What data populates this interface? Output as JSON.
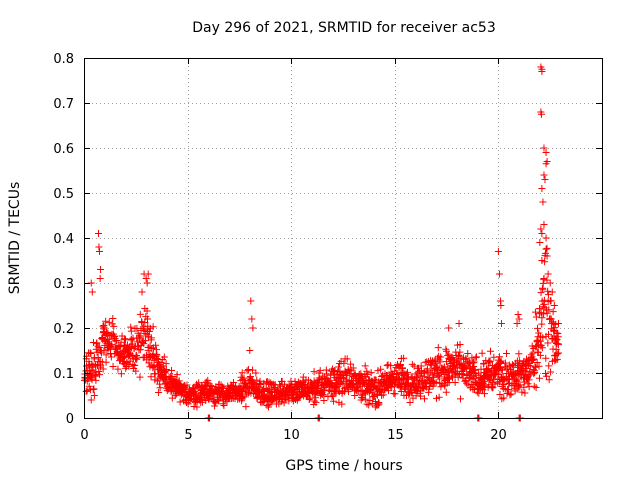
{
  "chart_data": {
    "type": "scatter",
    "title": "Day 296 of 2021, SRMTID for receiver ac53",
    "xlabel": "GPS time / hours",
    "ylabel": "SRMTID / TECUs",
    "xlim": [
      0,
      25
    ],
    "ylim": [
      0,
      0.8
    ],
    "xticks": [
      0,
      5,
      10,
      15,
      20
    ],
    "yticks": [
      0,
      0.1,
      0.2,
      0.3,
      0.4,
      0.5,
      0.6,
      0.7,
      0.8
    ],
    "xtick_labels": [
      "0",
      "5",
      "10",
      "15",
      "20"
    ],
    "ytick_labels": [
      "0",
      "0.1",
      "0.2",
      "0.3",
      "0.4",
      "0.5",
      "0.6",
      "0.7",
      "0.8"
    ],
    "grid": true,
    "marker": "+",
    "color": "#ff0000",
    "envelope": {
      "description": "approximate typical SRMTID level vs time",
      "x": [
        0,
        0.5,
        1,
        1.5,
        2,
        2.5,
        3,
        3.5,
        4,
        5,
        6,
        7,
        8,
        9,
        10,
        11,
        12,
        13,
        14,
        15,
        16,
        17,
        18,
        19,
        20,
        20.5,
        21,
        21.5,
        22,
        22.3,
        22.6,
        22.9
      ],
      "y": [
        0.1,
        0.12,
        0.17,
        0.16,
        0.14,
        0.15,
        0.2,
        0.12,
        0.08,
        0.05,
        0.06,
        0.05,
        0.07,
        0.05,
        0.06,
        0.06,
        0.08,
        0.09,
        0.06,
        0.09,
        0.08,
        0.1,
        0.11,
        0.09,
        0.1,
        0.09,
        0.1,
        0.1,
        0.18,
        0.3,
        0.18,
        0.15
      ],
      "spread": [
        0.05,
        0.07,
        0.06,
        0.06,
        0.05,
        0.07,
        0.08,
        0.06,
        0.04,
        0.03,
        0.03,
        0.03,
        0.04,
        0.03,
        0.03,
        0.04,
        0.05,
        0.05,
        0.04,
        0.05,
        0.05,
        0.06,
        0.06,
        0.05,
        0.06,
        0.05,
        0.05,
        0.06,
        0.12,
        0.2,
        0.1,
        0.06
      ]
    },
    "outliers": [
      {
        "x": 0.35,
        "y": 0.3
      },
      {
        "x": 0.4,
        "y": 0.28
      },
      {
        "x": 0.7,
        "y": 0.41
      },
      {
        "x": 0.72,
        "y": 0.38
      },
      {
        "x": 0.75,
        "y": 0.37
      },
      {
        "x": 0.8,
        "y": 0.33
      },
      {
        "x": 0.78,
        "y": 0.31
      },
      {
        "x": 0.35,
        "y": 0.04
      },
      {
        "x": 0.5,
        "y": 0.05
      },
      {
        "x": 2.9,
        "y": 0.32
      },
      {
        "x": 3.0,
        "y": 0.31
      },
      {
        "x": 3.05,
        "y": 0.3
      },
      {
        "x": 2.8,
        "y": 0.28
      },
      {
        "x": 3.1,
        "y": 0.32
      },
      {
        "x": 8.05,
        "y": 0.26
      },
      {
        "x": 8.1,
        "y": 0.22
      },
      {
        "x": 8.15,
        "y": 0.2
      },
      {
        "x": 8.0,
        "y": 0.15
      },
      {
        "x": 17.6,
        "y": 0.2
      },
      {
        "x": 18.1,
        "y": 0.21
      },
      {
        "x": 20.0,
        "y": 0.37
      },
      {
        "x": 20.05,
        "y": 0.32
      },
      {
        "x": 20.1,
        "y": 0.26
      },
      {
        "x": 20.12,
        "y": 0.25
      },
      {
        "x": 20.15,
        "y": 0.21
      },
      {
        "x": 20.95,
        "y": 0.23
      },
      {
        "x": 20.9,
        "y": 0.21
      },
      {
        "x": 21.0,
        "y": 0.22
      },
      {
        "x": 22.05,
        "y": 0.78
      },
      {
        "x": 22.1,
        "y": 0.775
      },
      {
        "x": 22.1,
        "y": 0.77
      },
      {
        "x": 22.05,
        "y": 0.68
      },
      {
        "x": 22.08,
        "y": 0.675
      },
      {
        "x": 22.2,
        "y": 0.6
      },
      {
        "x": 22.3,
        "y": 0.59
      },
      {
        "x": 22.35,
        "y": 0.57
      },
      {
        "x": 22.3,
        "y": 0.565
      },
      {
        "x": 22.2,
        "y": 0.54
      },
      {
        "x": 22.25,
        "y": 0.53
      },
      {
        "x": 22.1,
        "y": 0.51
      },
      {
        "x": 22.15,
        "y": 0.48
      },
      {
        "x": 22.2,
        "y": 0.43
      },
      {
        "x": 22.1,
        "y": 0.41
      },
      {
        "x": 22.05,
        "y": 0.42
      },
      {
        "x": 22.3,
        "y": 0.4
      },
      {
        "x": 22.0,
        "y": 0.39
      },
      {
        "x": 22.35,
        "y": 0.36
      },
      {
        "x": 22.1,
        "y": 0.35
      },
      {
        "x": 22.4,
        "y": 0.32
      },
      {
        "x": 22.2,
        "y": 0.31
      },
      {
        "x": 22.5,
        "y": 0.3
      },
      {
        "x": 22.6,
        "y": 0.28
      },
      {
        "x": 22.7,
        "y": 0.25
      },
      {
        "x": 22.55,
        "y": 0.22
      },
      {
        "x": 22.9,
        "y": 0.21
      }
    ],
    "gaps_on_axis": [
      6.0,
      11.3,
      19.0,
      21.0
    ]
  }
}
